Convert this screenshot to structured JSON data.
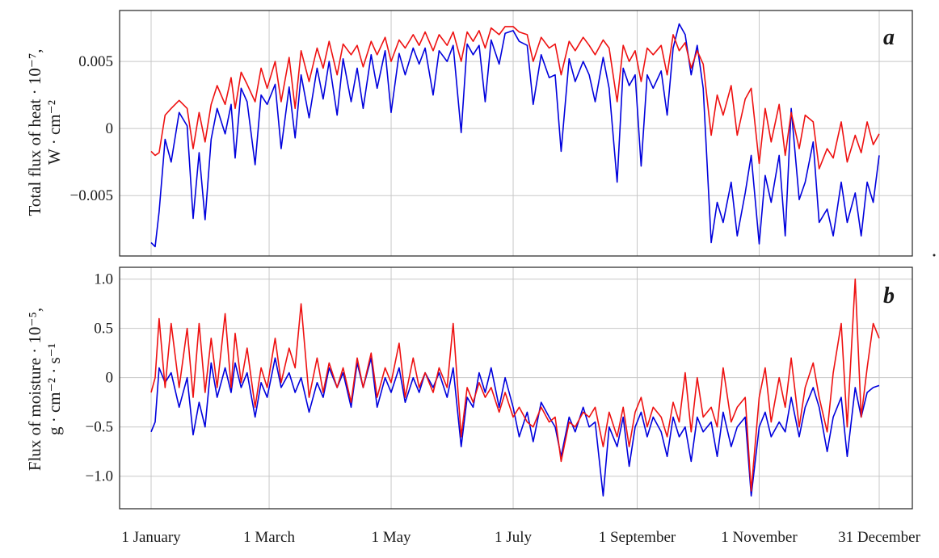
{
  "figure": {
    "x_tick_labels": [
      "1 January",
      "1 March",
      "1 May",
      "1 July",
      "1 September",
      "1 November",
      "31 December"
    ]
  },
  "chart_data": [
    {
      "type": "line",
      "panel_label": "a",
      "ylabel_line1": "Total flux of heat · 10⁻⁷,",
      "ylabel_line2": "W · cm⁻²",
      "ylim": [
        -0.0095,
        0.0088
      ],
      "yticks": [
        0.005,
        0,
        -0.005
      ],
      "ytick_labels": [
        "0.005",
        "0",
        "−0.005"
      ],
      "xlim": [
        0,
        364
      ],
      "grid": true,
      "series": [
        {
          "color": "#0000dd",
          "x": [
            0,
            2,
            4,
            7,
            10,
            14,
            18,
            21,
            24,
            27,
            30,
            33,
            37,
            40,
            42,
            45,
            48,
            52,
            55,
            58,
            62,
            65,
            69,
            72,
            75,
            79,
            83,
            86,
            89,
            93,
            96,
            100,
            103,
            106,
            110,
            113,
            117,
            120,
            124,
            127,
            131,
            134,
            137,
            141,
            144,
            148,
            151,
            155,
            158,
            161,
            164,
            167,
            170,
            174,
            177,
            181,
            184,
            188,
            191,
            195,
            199,
            202,
            205,
            209,
            212,
            216,
            219,
            222,
            226,
            229,
            233,
            236,
            239,
            242,
            245,
            248,
            251,
            255,
            258,
            261,
            264,
            267,
            270,
            273,
            276,
            280,
            283,
            286,
            290,
            293,
            297,
            300,
            304,
            307,
            310,
            314,
            317,
            320,
            324,
            327,
            331,
            334,
            338,
            341,
            345,
            348,
            352,
            355,
            358,
            361,
            364
          ],
          "y": [
            -0.0085,
            -0.0088,
            -0.0062,
            -0.0008,
            -0.0025,
            0.0012,
            0.0002,
            -0.0067,
            -0.0018,
            -0.0068,
            -0.0008,
            0.0015,
            -0.0004,
            0.0018,
            -0.0022,
            0.003,
            0.002,
            -0.0027,
            0.0025,
            0.0018,
            0.0033,
            -0.0015,
            0.0031,
            -0.0007,
            0.004,
            0.0008,
            0.0045,
            0.0022,
            0.005,
            0.001,
            0.0052,
            0.002,
            0.0045,
            0.0015,
            0.0055,
            0.003,
            0.0058,
            0.0012,
            0.0056,
            0.004,
            0.006,
            0.0048,
            0.006,
            0.0025,
            0.0058,
            0.005,
            0.0062,
            -0.0003,
            0.0063,
            0.0055,
            0.0062,
            0.002,
            0.0066,
            0.0048,
            0.0071,
            0.0073,
            0.0065,
            0.0062,
            0.0018,
            0.0055,
            0.0038,
            0.004,
            -0.0017,
            0.0052,
            0.0035,
            0.005,
            0.004,
            0.002,
            0.0053,
            0.003,
            -0.004,
            0.0045,
            0.0032,
            0.004,
            -0.0028,
            0.004,
            0.003,
            0.0043,
            0.001,
            0.006,
            0.0078,
            0.007,
            0.004,
            0.0062,
            0.003,
            -0.0085,
            -0.0055,
            -0.007,
            -0.004,
            -0.008,
            -0.0048,
            -0.002,
            -0.0086,
            -0.0035,
            -0.0055,
            -0.002,
            -0.008,
            0.0015,
            -0.0053,
            -0.004,
            -0.001,
            -0.007,
            -0.006,
            -0.008,
            -0.004,
            -0.007,
            -0.0048,
            -0.008,
            -0.004,
            -0.0055,
            -0.002
          ]
        },
        {
          "color": "#ee1111",
          "x": [
            0,
            2,
            4,
            7,
            10,
            14,
            18,
            21,
            24,
            27,
            30,
            33,
            37,
            40,
            42,
            45,
            48,
            52,
            55,
            58,
            62,
            65,
            69,
            72,
            75,
            79,
            83,
            86,
            89,
            93,
            96,
            100,
            103,
            106,
            110,
            113,
            117,
            120,
            124,
            127,
            131,
            134,
            137,
            141,
            144,
            148,
            151,
            155,
            158,
            161,
            164,
            167,
            170,
            174,
            177,
            181,
            184,
            188,
            191,
            195,
            199,
            202,
            205,
            209,
            212,
            216,
            219,
            222,
            226,
            229,
            233,
            236,
            239,
            242,
            245,
            248,
            251,
            255,
            258,
            261,
            264,
            267,
            270,
            273,
            276,
            280,
            283,
            286,
            290,
            293,
            297,
            300,
            304,
            307,
            310,
            314,
            317,
            320,
            324,
            327,
            331,
            334,
            338,
            341,
            345,
            348,
            352,
            355,
            358,
            361,
            364
          ],
          "y": [
            -0.0017,
            -0.002,
            -0.0018,
            0.001,
            0.0015,
            0.0021,
            0.0015,
            -0.0015,
            0.0012,
            -0.001,
            0.0018,
            0.0032,
            0.0018,
            0.0038,
            0.0015,
            0.0042,
            0.0033,
            0.002,
            0.0045,
            0.003,
            0.005,
            0.002,
            0.0053,
            0.0015,
            0.0058,
            0.0035,
            0.006,
            0.0045,
            0.0065,
            0.004,
            0.0063,
            0.0055,
            0.0062,
            0.0046,
            0.0065,
            0.0055,
            0.0068,
            0.005,
            0.0066,
            0.006,
            0.007,
            0.0062,
            0.0072,
            0.0058,
            0.007,
            0.0062,
            0.0072,
            0.005,
            0.0072,
            0.0065,
            0.0073,
            0.006,
            0.0075,
            0.007,
            0.0076,
            0.0076,
            0.0072,
            0.007,
            0.005,
            0.0068,
            0.006,
            0.0063,
            0.004,
            0.0065,
            0.0058,
            0.0068,
            0.0062,
            0.0055,
            0.0066,
            0.006,
            0.002,
            0.0062,
            0.005,
            0.0058,
            0.0035,
            0.006,
            0.0055,
            0.0062,
            0.004,
            0.007,
            0.0058,
            0.0064,
            0.0045,
            0.0058,
            0.0048,
            -0.0005,
            0.0025,
            0.001,
            0.0032,
            -0.0005,
            0.0022,
            0.003,
            -0.0026,
            0.0015,
            -0.001,
            0.0018,
            -0.002,
            0.0012,
            -0.0015,
            0.001,
            0.0005,
            -0.003,
            -0.0015,
            -0.0022,
            0.0005,
            -0.0025,
            -0.0005,
            -0.0018,
            0.0005,
            -0.0012,
            -0.0004
          ]
        }
      ]
    },
    {
      "type": "line",
      "panel_label": "b",
      "ylabel_line1": "Flux of moisture · 10⁻⁵,",
      "ylabel_line2": "g · cm⁻² · s⁻¹",
      "ylim": [
        -1.33,
        1.12
      ],
      "yticks": [
        1.0,
        0.5,
        0,
        -0.5,
        -1.0
      ],
      "ytick_labels": [
        "1.0",
        "0.5",
        "0",
        "−0.5",
        "−1.0"
      ],
      "xlim": [
        0,
        364
      ],
      "grid": true,
      "series": [
        {
          "color": "#0000dd",
          "x": [
            0,
            2,
            4,
            7,
            10,
            14,
            18,
            21,
            24,
            27,
            30,
            33,
            37,
            40,
            42,
            45,
            48,
            52,
            55,
            58,
            62,
            65,
            69,
            72,
            75,
            79,
            83,
            86,
            89,
            93,
            96,
            100,
            103,
            106,
            110,
            113,
            117,
            120,
            124,
            127,
            131,
            134,
            137,
            141,
            144,
            148,
            151,
            155,
            158,
            161,
            164,
            167,
            170,
            174,
            177,
            181,
            184,
            188,
            191,
            195,
            199,
            202,
            205,
            209,
            212,
            216,
            219,
            222,
            226,
            229,
            233,
            236,
            239,
            242,
            245,
            248,
            251,
            255,
            258,
            261,
            264,
            267,
            270,
            273,
            276,
            280,
            283,
            286,
            290,
            293,
            297,
            300,
            304,
            307,
            310,
            314,
            317,
            320,
            324,
            327,
            331,
            334,
            338,
            341,
            345,
            348,
            352,
            355,
            358,
            361,
            364
          ],
          "y": [
            -0.55,
            -0.45,
            0.1,
            -0.05,
            0.05,
            -0.3,
            0.0,
            -0.58,
            -0.25,
            -0.5,
            0.15,
            -0.2,
            0.1,
            -0.15,
            0.15,
            -0.1,
            0.05,
            -0.4,
            -0.05,
            -0.2,
            0.2,
            -0.1,
            0.05,
            -0.15,
            0.0,
            -0.35,
            -0.05,
            -0.2,
            0.1,
            -0.1,
            0.05,
            -0.3,
            0.15,
            -0.1,
            0.2,
            -0.3,
            0.0,
            -0.15,
            0.1,
            -0.25,
            0.0,
            -0.15,
            0.05,
            -0.1,
            0.05,
            -0.2,
            0.1,
            -0.7,
            -0.2,
            -0.3,
            0.05,
            -0.15,
            0.1,
            -0.3,
            0.0,
            -0.3,
            -0.6,
            -0.35,
            -0.65,
            -0.25,
            -0.4,
            -0.5,
            -0.8,
            -0.4,
            -0.55,
            -0.3,
            -0.5,
            -0.45,
            -1.2,
            -0.5,
            -0.7,
            -0.4,
            -0.9,
            -0.5,
            -0.35,
            -0.6,
            -0.4,
            -0.55,
            -0.8,
            -0.4,
            -0.6,
            -0.5,
            -0.85,
            -0.4,
            -0.55,
            -0.45,
            -0.8,
            -0.35,
            -0.7,
            -0.5,
            -0.4,
            -1.2,
            -0.5,
            -0.35,
            -0.6,
            -0.45,
            -0.55,
            -0.2,
            -0.6,
            -0.3,
            -0.1,
            -0.3,
            -0.75,
            -0.4,
            -0.2,
            -0.8,
            -0.1,
            -0.4,
            -0.15,
            -0.1,
            -0.08
          ]
        },
        {
          "color": "#ee1111",
          "x": [
            0,
            2,
            4,
            7,
            10,
            14,
            18,
            21,
            24,
            27,
            30,
            33,
            37,
            40,
            42,
            45,
            48,
            52,
            55,
            58,
            62,
            65,
            69,
            72,
            75,
            79,
            83,
            86,
            89,
            93,
            96,
            100,
            103,
            106,
            110,
            113,
            117,
            120,
            124,
            127,
            131,
            134,
            137,
            141,
            144,
            148,
            151,
            155,
            158,
            161,
            164,
            167,
            170,
            174,
            177,
            181,
            184,
            188,
            191,
            195,
            199,
            202,
            205,
            209,
            212,
            216,
            219,
            222,
            226,
            229,
            233,
            236,
            239,
            242,
            245,
            248,
            251,
            255,
            258,
            261,
            264,
            267,
            270,
            273,
            276,
            280,
            283,
            286,
            290,
            293,
            297,
            300,
            304,
            307,
            310,
            314,
            317,
            320,
            324,
            327,
            331,
            334,
            338,
            341,
            345,
            348,
            352,
            355,
            358,
            361,
            364
          ],
          "y": [
            -0.15,
            0.0,
            0.6,
            -0.1,
            0.55,
            -0.1,
            0.5,
            -0.2,
            0.55,
            -0.15,
            0.4,
            -0.1,
            0.65,
            -0.1,
            0.45,
            -0.05,
            0.3,
            -0.3,
            0.1,
            -0.1,
            0.4,
            -0.05,
            0.3,
            0.1,
            0.75,
            -0.2,
            0.2,
            -0.15,
            0.15,
            -0.1,
            0.1,
            -0.25,
            0.2,
            -0.1,
            0.25,
            -0.2,
            0.1,
            -0.05,
            0.35,
            -0.2,
            0.2,
            -0.1,
            0.05,
            -0.15,
            0.1,
            -0.1,
            0.55,
            -0.6,
            -0.1,
            -0.25,
            -0.05,
            -0.2,
            -0.1,
            -0.35,
            -0.15,
            -0.4,
            -0.3,
            -0.45,
            -0.5,
            -0.3,
            -0.45,
            -0.4,
            -0.85,
            -0.45,
            -0.5,
            -0.35,
            -0.4,
            -0.3,
            -0.7,
            -0.35,
            -0.6,
            -0.3,
            -0.7,
            -0.35,
            -0.2,
            -0.5,
            -0.3,
            -0.4,
            -0.6,
            -0.25,
            -0.45,
            0.05,
            -0.55,
            0.0,
            -0.4,
            -0.3,
            -0.5,
            0.1,
            -0.45,
            -0.3,
            -0.2,
            -1.15,
            -0.2,
            0.1,
            -0.45,
            0.0,
            -0.3,
            0.2,
            -0.5,
            -0.1,
            0.15,
            -0.2,
            -0.55,
            0.05,
            0.55,
            -0.5,
            1.0,
            -0.4,
            0.1,
            0.55,
            0.4
          ]
        }
      ]
    }
  ]
}
